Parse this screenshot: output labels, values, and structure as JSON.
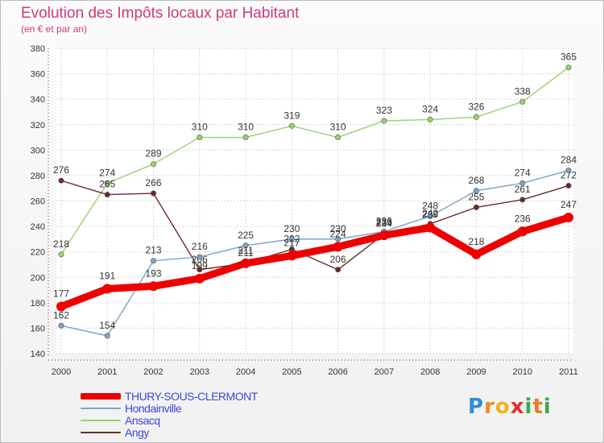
{
  "title": "Evolution des Impôts locaux par Habitant",
  "subtitle": "(en € et par an)",
  "logo": {
    "letters": [
      "P",
      "r",
      "o",
      "x",
      "i",
      "t",
      "i"
    ],
    "colors": [
      "#2a8fd6",
      "#f08a1c",
      "#f2b11a",
      "#e0312a",
      "#3aa84a",
      "#ee7a1e",
      "#3aa84a"
    ]
  },
  "chart_data": {
    "type": "line",
    "x": [
      "2000",
      "2001",
      "2002",
      "2003",
      "2004",
      "2005",
      "2006",
      "2007",
      "2008",
      "2009",
      "2010",
      "2011"
    ],
    "ylim": [
      140,
      380
    ],
    "yticks": [
      140,
      160,
      180,
      200,
      220,
      240,
      260,
      280,
      300,
      320,
      340,
      360,
      380
    ],
    "grid": true,
    "legend_position": "bottom-left",
    "series": [
      {
        "name": "THURY-SOUS-CLERMONT",
        "color": "#ee0000",
        "values": [
          177,
          191,
          193,
          199,
          211,
          217,
          224,
          233,
          239,
          218,
          236,
          247
        ]
      },
      {
        "name": "Hondainville",
        "color": "#7aa4c8",
        "values": [
          162,
          154,
          213,
          216,
          225,
          230,
          230,
          236,
          248,
          268,
          274,
          284
        ]
      },
      {
        "name": "Ansacq",
        "color": "#99d26b",
        "values": [
          218,
          274,
          289,
          310,
          310,
          319,
          310,
          323,
          324,
          326,
          338,
          365
        ]
      },
      {
        "name": "Angy",
        "color": "#6b2a2a",
        "values": [
          276,
          265,
          266,
          206,
          211,
          222,
          206,
          234,
          242,
          255,
          261,
          272
        ]
      }
    ]
  }
}
